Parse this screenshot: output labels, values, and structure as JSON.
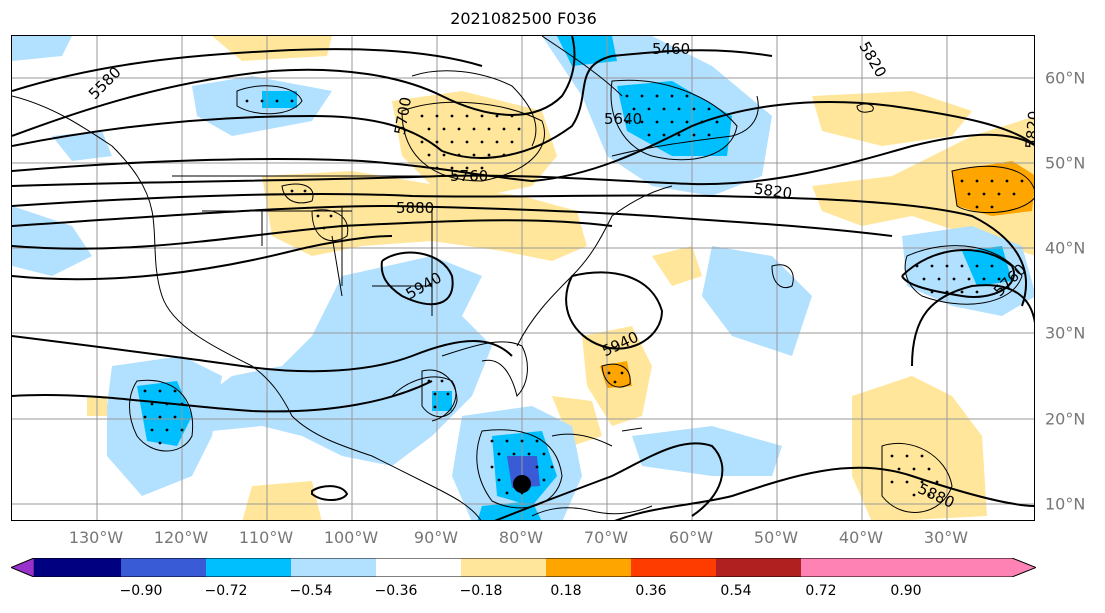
{
  "title": "2021082500 F036",
  "lon_labels": [
    "130°W",
    "120°W",
    "110°W",
    "100°W",
    "90°W",
    "80°W",
    "70°W",
    "60°W",
    "50°W",
    "40°W",
    "30°W"
  ],
  "lat_labels": [
    "60°N",
    "50°N",
    "40°N",
    "30°N",
    "20°N",
    "10°N"
  ],
  "contour_labels": {
    "c5580": "5580",
    "c5460": "5460",
    "c5820a": "5820",
    "c5700": "5700",
    "c5640": "5640",
    "c5820b": "5820",
    "c5760a": "5760",
    "c5880a": "5880",
    "c5820c": "5820",
    "c5940a": "5940",
    "c5760b": "5760",
    "c5940b": "5940",
    "c5880b": "5880"
  },
  "colorbar": {
    "ticks": [
      "−0.90",
      "−0.72",
      "−0.54",
      "−0.36",
      "−0.18",
      "0.18",
      "0.36",
      "0.54",
      "0.72",
      "0.90"
    ],
    "colors": {
      "min_extend": "#9932cc",
      "b1": "#000080",
      "b2": "#3a5bd6",
      "b3": "#00bfff",
      "b4": "#b2e0ff",
      "b5": "#ffffff",
      "b6": "#ffe69a",
      "b7": "#ffa500",
      "b8": "#ff3c00",
      "b9": "#b02020",
      "max_extend": "#ff82b4"
    }
  },
  "colors": {
    "light_blue": "#b2e0ff",
    "blue": "#00bfff",
    "dark_blue": "#3a5bd6",
    "light_yellow": "#ffe69a",
    "orange": "#ffa500",
    "contour": "#000000"
  },
  "marker": "storm-center-dot"
}
